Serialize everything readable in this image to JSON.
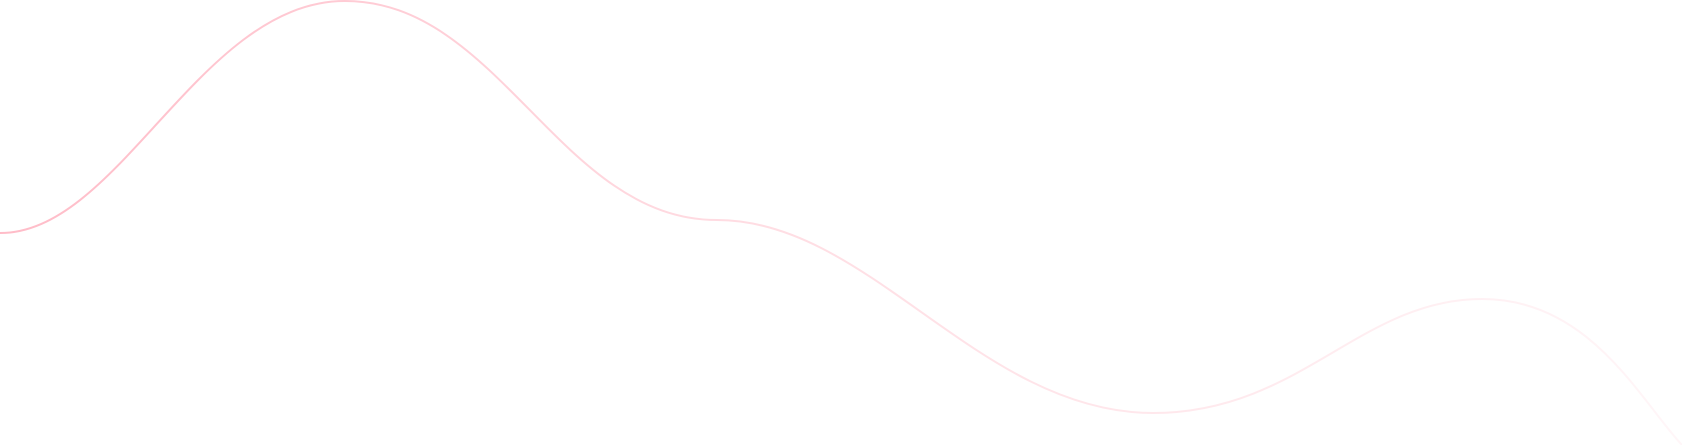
{
  "decoration": {
    "background_color": "#ffffff",
    "wave_color_start": "#ffbcc8",
    "wave_color_mid": "#ffdde3",
    "wave_color_end": "#fff6f8"
  }
}
